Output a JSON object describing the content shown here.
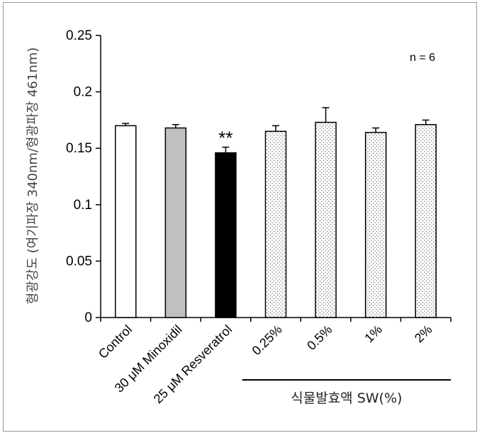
{
  "chart_data": {
    "type": "bar",
    "ylabel": "형광강도 (여기파장 340nm/형광파장 461nm)",
    "xlabel": "",
    "ylim": [
      0,
      0.25
    ],
    "yticks": [
      "0",
      "0.05",
      "0.1",
      "0.15",
      "0.2",
      "0.25"
    ],
    "categories": [
      "Control",
      "30 μM Minoxidil",
      "25 μM Resveratrol",
      "0.25%",
      "0.5%",
      "1%",
      "2%"
    ],
    "values": [
      0.17,
      0.168,
      0.146,
      0.165,
      0.173,
      0.164,
      0.171
    ],
    "errors": [
      0.002,
      0.003,
      0.005,
      0.005,
      0.013,
      0.004,
      0.004
    ],
    "fills": [
      "white",
      "gray",
      "black",
      "dotted",
      "dotted",
      "dotted",
      "dotted"
    ],
    "significance": [
      {
        "category_index": 2,
        "text": "**"
      }
    ],
    "annotation": "n = 6",
    "group_label": "식물발효액 SW(%)",
    "group_indices": [
      3,
      4,
      5,
      6
    ],
    "grid": false,
    "colors": {
      "gray_bar": "#c0c0c0",
      "black_bar": "#000000",
      "dot": "#6a6a6a"
    }
  }
}
